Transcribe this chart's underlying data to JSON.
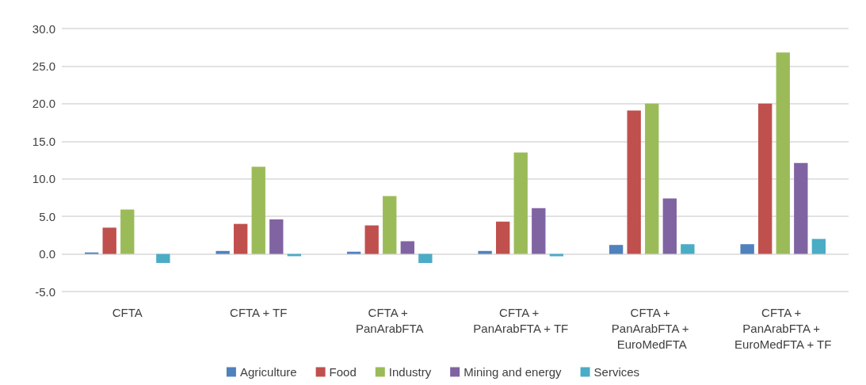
{
  "chart_data": {
    "type": "bar",
    "categories": [
      "CFTA",
      "CFTA + TF",
      "CFTA + PanArabFTA",
      "CFTA + PanArabFTA + TF",
      "CFTA + PanArabFTA + EuroMedFTA",
      "CFTA + PanArabFTA + EuroMedFTA + TF"
    ],
    "series": [
      {
        "name": "Agriculture",
        "color": "#4f81bd",
        "values": [
          0.2,
          0.4,
          0.3,
          0.4,
          1.2,
          1.3
        ]
      },
      {
        "name": "Food",
        "color": "#c0504d",
        "values": [
          3.5,
          4.0,
          3.8,
          4.3,
          19.1,
          20.0
        ]
      },
      {
        "name": "Industry",
        "color": "#9bbb59",
        "values": [
          5.9,
          11.6,
          7.7,
          13.5,
          20.0,
          26.8
        ]
      },
      {
        "name": "Mining and energy",
        "color": "#8064a2",
        "values": [
          null,
          4.6,
          1.7,
          6.1,
          7.4,
          12.1
        ]
      },
      {
        "name": "Services",
        "color": "#4bacc6",
        "values": [
          -1.2,
          -0.3,
          -1.2,
          -0.3,
          1.3,
          2.0
        ]
      }
    ],
    "ylim": [
      -5,
      30
    ],
    "yticks": [
      {
        "value": -5,
        "label": "-5.0"
      },
      {
        "value": 0,
        "label": "0.0"
      },
      {
        "value": 5,
        "label": "5.0"
      },
      {
        "value": 10,
        "label": "10.0"
      },
      {
        "value": 15,
        "label": "15.0"
      },
      {
        "value": 20,
        "label": "20.0"
      },
      {
        "value": 25,
        "label": "25.0"
      },
      {
        "value": 30,
        "label": "30.0"
      }
    ],
    "grid": "y",
    "legend": "bottom"
  }
}
